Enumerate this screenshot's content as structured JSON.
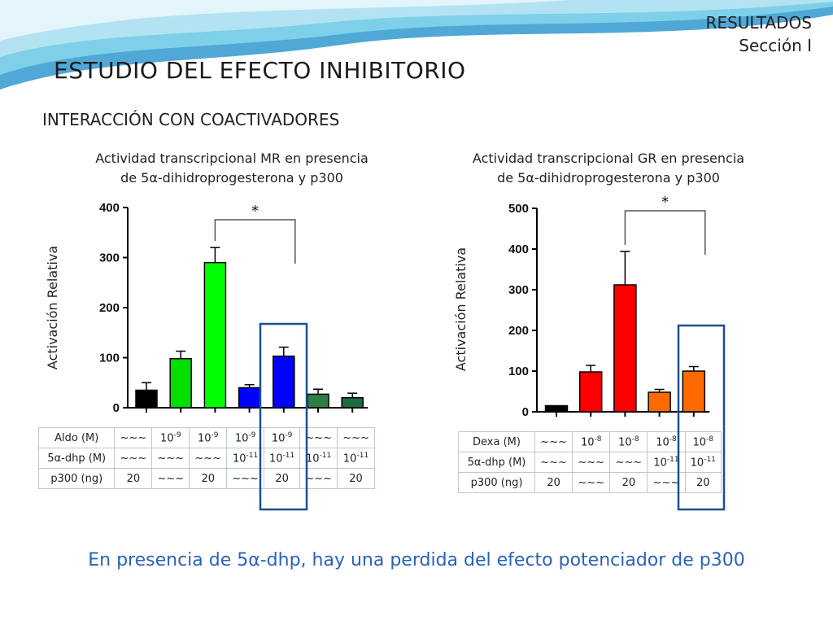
{
  "header": {
    "section": "RESULTADOS",
    "section_sub": "Sección I",
    "title": "ESTUDIO DEL EFECTO INHIBITORIO",
    "subtitle": "INTERACCIÓN CON COACTIVADORES"
  },
  "colors": {
    "wave1": "#4fa8d6",
    "wave2": "#7dd0e8",
    "wave3": "#b3e3f2",
    "highlight": "#1f4f8f",
    "conclusion": "#2a62b8"
  },
  "chart_data": [
    {
      "type": "bar",
      "title": "Actividad transcripcional MR en presencia de 5α-dihidroprogesterona y p300",
      "title_lines": [
        "Actividad transcripcional MR en presencia",
        "de 5α-dihidroprogesterona y p300"
      ],
      "ylabel": "Activación Relativa",
      "ylim": [
        0,
        400
      ],
      "yticks": [
        "0",
        "100",
        "200",
        "300",
        "400"
      ],
      "values": [
        35,
        98,
        290,
        40,
        103,
        27,
        20
      ],
      "errors": [
        15,
        15,
        30,
        6,
        18,
        10,
        9
      ],
      "colors": [
        "#000000",
        "#00e000",
        "#00ff00",
        "#0000ff",
        "#0000ff",
        "#2e7d45",
        "#1e6b3f"
      ],
      "significance": {
        "label": "*",
        "from": 2,
        "to": 4
      },
      "highlight_bar": 4,
      "table": [
        {
          "label": "Aldo (M)",
          "cells": [
            "~~~",
            "10-9",
            "10-9",
            "10-9",
            "10-9",
            "~~~",
            "~~~"
          ]
        },
        {
          "label": "5α-dhp (M)",
          "cells": [
            "~~~",
            "~~~",
            "~~~",
            "10-11",
            "10-11",
            "10-11",
            "10-11"
          ]
        },
        {
          "label": "p300 (ng)",
          "cells": [
            "20",
            "~~~",
            "20",
            "~~~",
            "20",
            "~~~",
            "20"
          ]
        }
      ]
    },
    {
      "type": "bar",
      "title": "Actividad transcripcional GR en presencia de 5α-dihidroprogesterona y p300",
      "title_lines": [
        "Actividad transcripcional GR en presencia",
        "de 5α-dihidroprogesterona y p300"
      ],
      "ylabel": "Activación Relativa",
      "ylim": [
        0,
        500
      ],
      "yticks": [
        "0",
        "100",
        "200",
        "300",
        "400",
        "500"
      ],
      "values": [
        15,
        98,
        312,
        48,
        100
      ],
      "errors": [
        0,
        16,
        82,
        7,
        11
      ],
      "colors": [
        "#000000",
        "#ff0000",
        "#ff0000",
        "#ff6a00",
        "#ff6a00"
      ],
      "significance": {
        "label": "*",
        "from": 2,
        "to": 4
      },
      "highlight_bar": 4,
      "table": [
        {
          "label": "Dexa (M)",
          "cells": [
            "~~~",
            "10-8",
            "10-8",
            "10-8",
            "10-8"
          ]
        },
        {
          "label": "5α-dhp (M)",
          "cells": [
            "~~~",
            "~~~",
            "~~~",
            "10-11",
            "10-11"
          ]
        },
        {
          "label": "p300 (ng)",
          "cells": [
            "20",
            "~~~",
            "20",
            "~~~",
            "20"
          ]
        }
      ]
    }
  ],
  "conclusion": "En presencia de 5α-dhp,  hay una perdida del efecto potenciador de p300"
}
